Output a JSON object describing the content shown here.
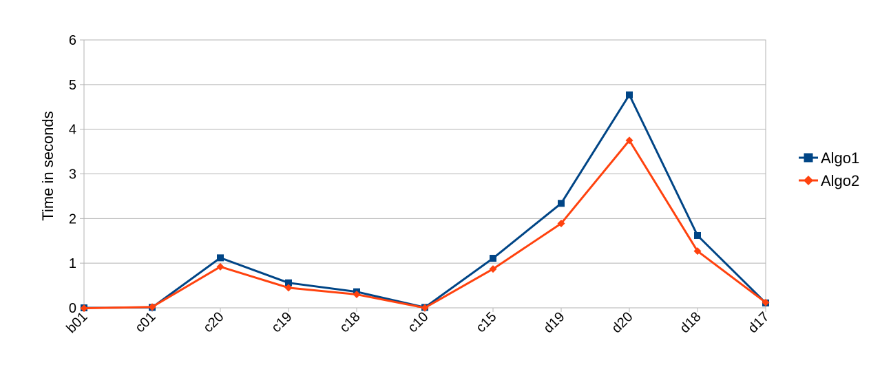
{
  "chart_data": {
    "type": "line",
    "title": "",
    "xlabel": "",
    "ylabel": "Time in seconds",
    "categories": [
      "b01",
      "c01",
      "c20",
      "c19",
      "c18",
      "c10",
      "c15",
      "d19",
      "d20",
      "d18",
      "d17"
    ],
    "ylim": [
      0,
      6
    ],
    "yticks": [
      0,
      1,
      2,
      3,
      4,
      5,
      6
    ],
    "grid": true,
    "legend_position": "right",
    "series": [
      {
        "name": "Algo1",
        "color": "#004586",
        "marker": "square",
        "values": [
          0.0,
          0.01,
          1.12,
          0.56,
          0.36,
          0.01,
          1.11,
          2.34,
          4.77,
          1.62,
          0.11
        ]
      },
      {
        "name": "Algo2",
        "color": "#ff420e",
        "marker": "diamond",
        "values": [
          -0.01,
          0.02,
          0.92,
          0.45,
          0.3,
          0.0,
          0.87,
          1.89,
          3.75,
          1.27,
          0.12
        ]
      }
    ]
  }
}
